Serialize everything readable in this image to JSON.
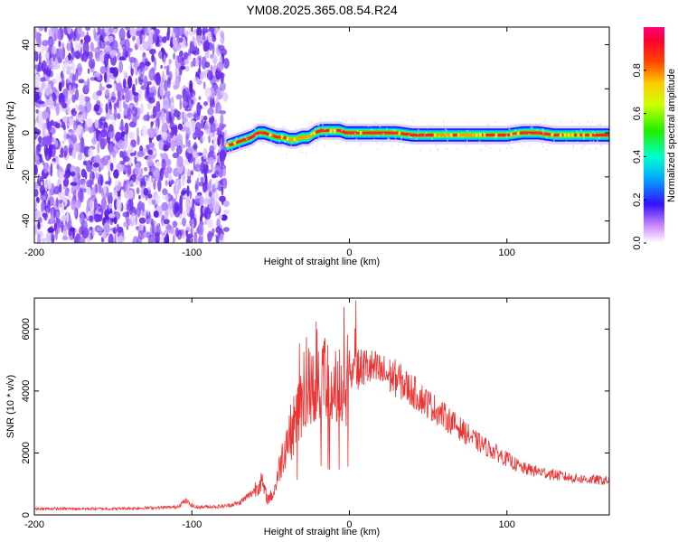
{
  "page": {
    "title": "YM08.2025.365.08.54.R24"
  },
  "chart_data": [
    {
      "type": "heatmap",
      "xlabel": "Height of straight line (km)",
      "ylabel": "Frequency (Hz)",
      "xlim": [
        -200,
        165
      ],
      "ylim": [
        -50,
        48
      ],
      "xticks": [
        -200,
        -100,
        0,
        100
      ],
      "yticks": [
        -40,
        -20,
        0,
        20,
        40
      ],
      "noise_region_xmax": -78,
      "ridge": {
        "x": [
          -78,
          -70,
          -62,
          -58,
          -54,
          -50,
          -46,
          -42,
          -38,
          -34,
          -30,
          -26,
          -22,
          -18,
          -14,
          -10,
          -6,
          -2,
          0,
          10,
          20,
          30,
          40,
          60,
          80,
          100,
          110,
          120,
          130,
          140,
          150,
          165
        ],
        "y": [
          -6,
          -4,
          -2,
          0,
          0,
          -1,
          -2,
          -2,
          -3,
          -3,
          -2,
          -2,
          0,
          1,
          1,
          1,
          1,
          0,
          0,
          0,
          0,
          0,
          -1,
          -1,
          -1,
          -1,
          0,
          0,
          -1,
          -1,
          -1,
          -1
        ]
      },
      "colorbar": {
        "label": "Normalized spectral amplitude",
        "range": [
          0.0,
          1.0
        ],
        "ticks": [
          "0.0",
          "0.2",
          "0.4",
          "0.6",
          "0.8"
        ],
        "tick_values": [
          0.0,
          0.2,
          0.4,
          0.6,
          0.8
        ]
      }
    },
    {
      "type": "line",
      "xlabel": "Height of straight line (km)",
      "ylabel": "SNR (10 * v/v)",
      "xlim": [
        -200,
        165
      ],
      "ylim": [
        0,
        7000
      ],
      "xticks": [
        -200,
        -100,
        0,
        100
      ],
      "yticks": [
        0,
        2000,
        4000,
        6000
      ],
      "color": "#ee3333",
      "envelope": {
        "x": [
          -200,
          -150,
          -110,
          -104,
          -98,
          -80,
          -70,
          -62,
          -56,
          -52,
          -48,
          -44,
          -40,
          -36,
          -30,
          -25,
          -20,
          -15,
          -10,
          0,
          10,
          20,
          30,
          40,
          50,
          60,
          70,
          80,
          90,
          100,
          110,
          120,
          130,
          140,
          150,
          165
        ],
        "y": [
          200,
          200,
          250,
          450,
          250,
          280,
          380,
          700,
          1100,
          500,
          700,
          1600,
          2400,
          2800,
          3700,
          4300,
          4600,
          4300,
          4000,
          4500,
          4800,
          4600,
          4400,
          4000,
          3600,
          3200,
          2800,
          2400,
          2100,
          1800,
          1500,
          1400,
          1300,
          1200,
          1150,
          1100
        ]
      }
    }
  ]
}
